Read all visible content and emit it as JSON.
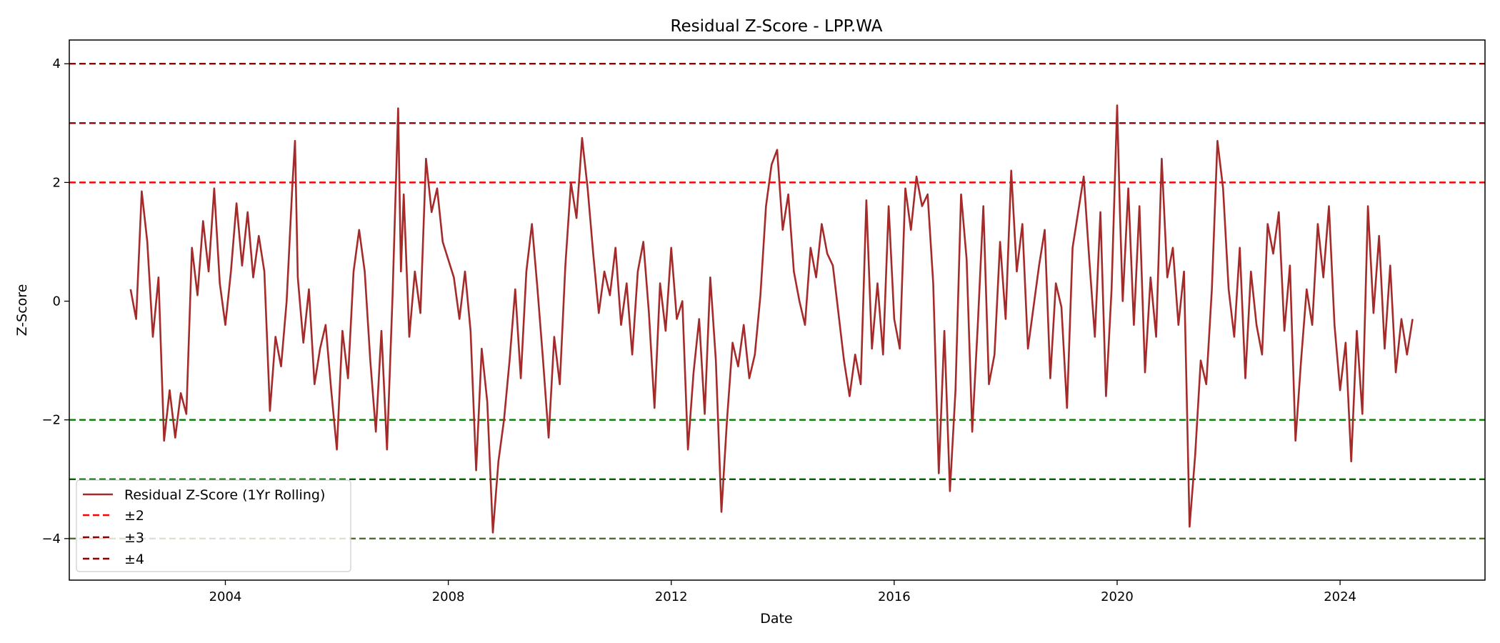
{
  "chart_data": {
    "type": "line",
    "title": "Residual Z-Score - LPP.WA",
    "xlabel": "Date",
    "ylabel": "Z-Score",
    "xlim": [
      2001.2,
      2026.6
    ],
    "ylim": [
      -4.7,
      4.4
    ],
    "x_ticks": [
      2004,
      2008,
      2012,
      2016,
      2020,
      2024
    ],
    "x_tick_labels": [
      "2004",
      "2008",
      "2012",
      "2016",
      "2020",
      "2024"
    ],
    "y_ticks": [
      -4,
      -2,
      0,
      2,
      4
    ],
    "y_tick_labels": [
      "−4",
      "−2",
      "0",
      "2",
      "4"
    ],
    "grid": false,
    "legend_position": "lower-left",
    "series": [
      {
        "name": "Residual Z-Score (1Yr Rolling)",
        "color": "#a52a2a",
        "points": [
          [
            2002.3,
            0.2
          ],
          [
            2002.4,
            -0.3
          ],
          [
            2002.5,
            1.85
          ],
          [
            2002.6,
            1.0
          ],
          [
            2002.7,
            -0.6
          ],
          [
            2002.8,
            0.4
          ],
          [
            2002.9,
            -2.35
          ],
          [
            2003.0,
            -1.5
          ],
          [
            2003.1,
            -2.3
          ],
          [
            2003.2,
            -1.55
          ],
          [
            2003.3,
            -1.9
          ],
          [
            2003.4,
            0.9
          ],
          [
            2003.5,
            0.1
          ],
          [
            2003.6,
            1.35
          ],
          [
            2003.7,
            0.5
          ],
          [
            2003.8,
            1.9
          ],
          [
            2003.9,
            0.3
          ],
          [
            2004.0,
            -0.4
          ],
          [
            2004.1,
            0.5
          ],
          [
            2004.2,
            1.65
          ],
          [
            2004.3,
            0.6
          ],
          [
            2004.4,
            1.5
          ],
          [
            2004.5,
            0.4
          ],
          [
            2004.6,
            1.1
          ],
          [
            2004.7,
            0.5
          ],
          [
            2004.8,
            -1.85
          ],
          [
            2004.9,
            -0.6
          ],
          [
            2005.0,
            -1.1
          ],
          [
            2005.1,
            0.0
          ],
          [
            2005.2,
            1.9
          ],
          [
            2005.25,
            2.7
          ],
          [
            2005.3,
            0.4
          ],
          [
            2005.4,
            -0.7
          ],
          [
            2005.5,
            0.2
          ],
          [
            2005.6,
            -1.4
          ],
          [
            2005.7,
            -0.8
          ],
          [
            2005.8,
            -0.4
          ],
          [
            2005.9,
            -1.5
          ],
          [
            2006.0,
            -2.5
          ],
          [
            2006.1,
            -0.5
          ],
          [
            2006.2,
            -1.3
          ],
          [
            2006.3,
            0.5
          ],
          [
            2006.4,
            1.2
          ],
          [
            2006.5,
            0.5
          ],
          [
            2006.6,
            -1.0
          ],
          [
            2006.7,
            -2.2
          ],
          [
            2006.8,
            -0.5
          ],
          [
            2006.9,
            -2.5
          ],
          [
            2007.0,
            0.1
          ],
          [
            2007.1,
            3.25
          ],
          [
            2007.15,
            0.5
          ],
          [
            2007.2,
            1.8
          ],
          [
            2007.3,
            -0.6
          ],
          [
            2007.4,
            0.5
          ],
          [
            2007.5,
            -0.2
          ],
          [
            2007.6,
            2.4
          ],
          [
            2007.7,
            1.5
          ],
          [
            2007.8,
            1.9
          ],
          [
            2007.9,
            1.0
          ],
          [
            2008.0,
            0.7
          ],
          [
            2008.1,
            0.4
          ],
          [
            2008.2,
            -0.3
          ],
          [
            2008.3,
            0.5
          ],
          [
            2008.4,
            -0.5
          ],
          [
            2008.5,
            -2.85
          ],
          [
            2008.6,
            -0.8
          ],
          [
            2008.7,
            -1.7
          ],
          [
            2008.8,
            -3.9
          ],
          [
            2008.9,
            -2.7
          ],
          [
            2009.0,
            -2.0
          ],
          [
            2009.1,
            -1.0
          ],
          [
            2009.2,
            0.2
          ],
          [
            2009.3,
            -1.3
          ],
          [
            2009.4,
            0.5
          ],
          [
            2009.5,
            1.3
          ],
          [
            2009.6,
            0.2
          ],
          [
            2009.7,
            -1.0
          ],
          [
            2009.8,
            -2.3
          ],
          [
            2009.9,
            -0.6
          ],
          [
            2010.0,
            -1.4
          ],
          [
            2010.1,
            0.6
          ],
          [
            2010.2,
            2.0
          ],
          [
            2010.3,
            1.4
          ],
          [
            2010.4,
            2.75
          ],
          [
            2010.5,
            1.9
          ],
          [
            2010.6,
            0.8
          ],
          [
            2010.7,
            -0.2
          ],
          [
            2010.8,
            0.5
          ],
          [
            2010.9,
            0.1
          ],
          [
            2011.0,
            0.9
          ],
          [
            2011.1,
            -0.4
          ],
          [
            2011.2,
            0.3
          ],
          [
            2011.3,
            -0.9
          ],
          [
            2011.4,
            0.5
          ],
          [
            2011.5,
            1.0
          ],
          [
            2011.6,
            -0.2
          ],
          [
            2011.7,
            -1.8
          ],
          [
            2011.8,
            0.3
          ],
          [
            2011.9,
            -0.5
          ],
          [
            2012.0,
            0.9
          ],
          [
            2012.1,
            -0.3
          ],
          [
            2012.2,
            0.0
          ],
          [
            2012.3,
            -2.5
          ],
          [
            2012.4,
            -1.2
          ],
          [
            2012.5,
            -0.3
          ],
          [
            2012.6,
            -1.9
          ],
          [
            2012.7,
            0.4
          ],
          [
            2012.8,
            -1.0
          ],
          [
            2012.9,
            -3.55
          ],
          [
            2013.0,
            -2.0
          ],
          [
            2013.1,
            -0.7
          ],
          [
            2013.2,
            -1.1
          ],
          [
            2013.3,
            -0.4
          ],
          [
            2013.4,
            -1.3
          ],
          [
            2013.5,
            -0.9
          ],
          [
            2013.6,
            0.1
          ],
          [
            2013.7,
            1.6
          ],
          [
            2013.8,
            2.3
          ],
          [
            2013.9,
            2.55
          ],
          [
            2014.0,
            1.2
          ],
          [
            2014.1,
            1.8
          ],
          [
            2014.2,
            0.5
          ],
          [
            2014.3,
            0.0
          ],
          [
            2014.4,
            -0.4
          ],
          [
            2014.5,
            0.9
          ],
          [
            2014.6,
            0.4
          ],
          [
            2014.7,
            1.3
          ],
          [
            2014.8,
            0.8
          ],
          [
            2014.9,
            0.6
          ],
          [
            2015.0,
            -0.2
          ],
          [
            2015.1,
            -1.0
          ],
          [
            2015.2,
            -1.6
          ],
          [
            2015.3,
            -0.9
          ],
          [
            2015.4,
            -1.4
          ],
          [
            2015.5,
            1.7
          ],
          [
            2015.6,
            -0.8
          ],
          [
            2015.7,
            0.3
          ],
          [
            2015.8,
            -0.9
          ],
          [
            2015.9,
            1.6
          ],
          [
            2016.0,
            -0.3
          ],
          [
            2016.1,
            -0.8
          ],
          [
            2016.2,
            1.9
          ],
          [
            2016.3,
            1.2
          ],
          [
            2016.4,
            2.1
          ],
          [
            2016.5,
            1.6
          ],
          [
            2016.6,
            1.8
          ],
          [
            2016.7,
            0.3
          ],
          [
            2016.8,
            -2.9
          ],
          [
            2016.9,
            -0.5
          ],
          [
            2017.0,
            -3.2
          ],
          [
            2017.1,
            -1.5
          ],
          [
            2017.2,
            1.8
          ],
          [
            2017.3,
            0.7
          ],
          [
            2017.4,
            -2.2
          ],
          [
            2017.5,
            -0.4
          ],
          [
            2017.6,
            1.6
          ],
          [
            2017.7,
            -1.4
          ],
          [
            2017.8,
            -0.9
          ],
          [
            2017.9,
            1.0
          ],
          [
            2018.0,
            -0.3
          ],
          [
            2018.1,
            2.2
          ],
          [
            2018.2,
            0.5
          ],
          [
            2018.3,
            1.3
          ],
          [
            2018.4,
            -0.8
          ],
          [
            2018.5,
            -0.1
          ],
          [
            2018.6,
            0.6
          ],
          [
            2018.7,
            1.2
          ],
          [
            2018.8,
            -1.3
          ],
          [
            2018.9,
            0.3
          ],
          [
            2019.0,
            -0.1
          ],
          [
            2019.1,
            -1.8
          ],
          [
            2019.2,
            0.9
          ],
          [
            2019.3,
            1.5
          ],
          [
            2019.4,
            2.1
          ],
          [
            2019.5,
            0.7
          ],
          [
            2019.6,
            -0.6
          ],
          [
            2019.7,
            1.5
          ],
          [
            2019.8,
            -1.6
          ],
          [
            2019.9,
            0.2
          ],
          [
            2020.0,
            3.3
          ],
          [
            2020.05,
            1.5
          ],
          [
            2020.1,
            0.0
          ],
          [
            2020.2,
            1.9
          ],
          [
            2020.3,
            -0.4
          ],
          [
            2020.4,
            1.6
          ],
          [
            2020.5,
            -1.2
          ],
          [
            2020.6,
            0.4
          ],
          [
            2020.7,
            -0.6
          ],
          [
            2020.8,
            2.4
          ],
          [
            2020.9,
            0.4
          ],
          [
            2021.0,
            0.9
          ],
          [
            2021.1,
            -0.4
          ],
          [
            2021.2,
            0.5
          ],
          [
            2021.3,
            -3.8
          ],
          [
            2021.4,
            -2.6
          ],
          [
            2021.5,
            -1.0
          ],
          [
            2021.6,
            -1.4
          ],
          [
            2021.7,
            0.2
          ],
          [
            2021.8,
            2.7
          ],
          [
            2021.9,
            1.9
          ],
          [
            2022.0,
            0.2
          ],
          [
            2022.1,
            -0.6
          ],
          [
            2022.2,
            0.9
          ],
          [
            2022.3,
            -1.3
          ],
          [
            2022.4,
            0.5
          ],
          [
            2022.5,
            -0.4
          ],
          [
            2022.6,
            -0.9
          ],
          [
            2022.7,
            1.3
          ],
          [
            2022.8,
            0.8
          ],
          [
            2022.9,
            1.5
          ],
          [
            2023.0,
            -0.5
          ],
          [
            2023.1,
            0.6
          ],
          [
            2023.2,
            -2.35
          ],
          [
            2023.3,
            -1.0
          ],
          [
            2023.4,
            0.2
          ],
          [
            2023.5,
            -0.4
          ],
          [
            2023.6,
            1.3
          ],
          [
            2023.7,
            0.4
          ],
          [
            2023.8,
            1.6
          ],
          [
            2023.9,
            -0.4
          ],
          [
            2024.0,
            -1.5
          ],
          [
            2024.1,
            -0.7
          ],
          [
            2024.2,
            -2.7
          ],
          [
            2024.3,
            -0.5
          ],
          [
            2024.4,
            -1.9
          ],
          [
            2024.5,
            1.6
          ],
          [
            2024.6,
            -0.2
          ],
          [
            2024.7,
            1.1
          ],
          [
            2024.8,
            -0.8
          ],
          [
            2024.9,
            0.6
          ],
          [
            2025.0,
            -1.2
          ],
          [
            2025.1,
            -0.3
          ],
          [
            2025.2,
            -0.9
          ],
          [
            2025.3,
            -0.3
          ]
        ]
      }
    ],
    "reference_lines": [
      {
        "label": "±2",
        "color": "#ff0000",
        "values": [
          2
        ]
      },
      {
        "label": "",
        "color": "#008000",
        "values": [
          -2
        ]
      },
      {
        "label": "±3",
        "color": "#8b0000",
        "values": [
          3
        ]
      },
      {
        "label": "",
        "color": "#006400",
        "values": [
          -3
        ]
      },
      {
        "label": "±4",
        "color": "#8b0000",
        "values": [
          4
        ]
      },
      {
        "label": "",
        "color": "#556b2f",
        "values": [
          -4
        ]
      }
    ]
  }
}
